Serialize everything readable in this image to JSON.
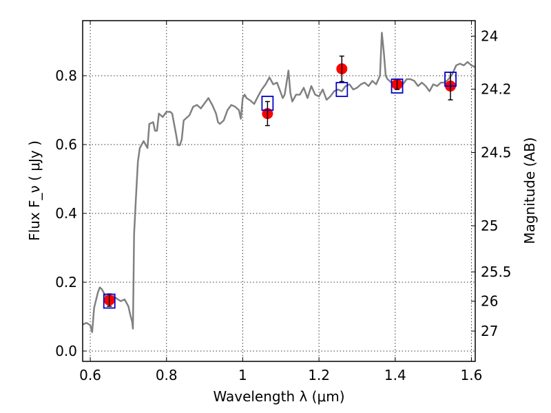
{
  "chart_data": {
    "type": "scatter",
    "xlabel": "Wavelength  λ (μm)",
    "ylabel": "Flux  F_ν  ( μJy )",
    "ylabel_right": "Magnitude (AB)",
    "xlim": [
      0.58,
      1.61
    ],
    "ylim": [
      -0.03,
      0.96
    ],
    "grid": true,
    "x_ticks": [
      0.6,
      0.8,
      1.0,
      1.2,
      1.4,
      1.6
    ],
    "x_tick_labels": [
      "0.6",
      "0.8",
      "1",
      "1.2",
      "1.4",
      "1.6"
    ],
    "y_ticks": [
      0.0,
      0.2,
      0.4,
      0.6,
      0.8
    ],
    "y_tick_labels": [
      "0.0",
      "0.2",
      "0.4",
      "0.6",
      "0.8"
    ],
    "mag_ticks": [
      {
        "label": "24",
        "flux": 0.915
      },
      {
        "label": "24.2",
        "flux": 0.761
      },
      {
        "label": "24.5",
        "flux": 0.577
      },
      {
        "label": "25",
        "flux": 0.364
      },
      {
        "label": "25.5",
        "flux": 0.23
      },
      {
        "label": "26",
        "flux": 0.145
      },
      {
        "label": "27",
        "flux": 0.058
      }
    ],
    "model_color": "#808080",
    "model_spectrum": [
      [
        0.58,
        0.077
      ],
      [
        0.59,
        0.082
      ],
      [
        0.6,
        0.075
      ],
      [
        0.605,
        0.055
      ],
      [
        0.61,
        0.125
      ],
      [
        0.62,
        0.17
      ],
      [
        0.625,
        0.185
      ],
      [
        0.63,
        0.18
      ],
      [
        0.64,
        0.16
      ],
      [
        0.65,
        0.155
      ],
      [
        0.66,
        0.16
      ],
      [
        0.67,
        0.152
      ],
      [
        0.68,
        0.145
      ],
      [
        0.69,
        0.15
      ],
      [
        0.7,
        0.13
      ],
      [
        0.705,
        0.105
      ],
      [
        0.71,
        0.085
      ],
      [
        0.712,
        0.065
      ],
      [
        0.715,
        0.34
      ],
      [
        0.72,
        0.45
      ],
      [
        0.725,
        0.55
      ],
      [
        0.73,
        0.59
      ],
      [
        0.74,
        0.61
      ],
      [
        0.75,
        0.59
      ],
      [
        0.755,
        0.66
      ],
      [
        0.765,
        0.665
      ],
      [
        0.77,
        0.64
      ],
      [
        0.775,
        0.64
      ],
      [
        0.78,
        0.69
      ],
      [
        0.79,
        0.68
      ],
      [
        0.8,
        0.695
      ],
      [
        0.81,
        0.695
      ],
      [
        0.815,
        0.69
      ],
      [
        0.82,
        0.66
      ],
      [
        0.825,
        0.63
      ],
      [
        0.83,
        0.598
      ],
      [
        0.835,
        0.598
      ],
      [
        0.84,
        0.615
      ],
      [
        0.845,
        0.67
      ],
      [
        0.85,
        0.675
      ],
      [
        0.86,
        0.685
      ],
      [
        0.87,
        0.71
      ],
      [
        0.88,
        0.715
      ],
      [
        0.89,
        0.705
      ],
      [
        0.9,
        0.72
      ],
      [
        0.91,
        0.735
      ],
      [
        0.92,
        0.715
      ],
      [
        0.93,
        0.69
      ],
      [
        0.935,
        0.665
      ],
      [
        0.94,
        0.66
      ],
      [
        0.95,
        0.67
      ],
      [
        0.96,
        0.7
      ],
      [
        0.97,
        0.715
      ],
      [
        0.98,
        0.71
      ],
      [
        0.99,
        0.7
      ],
      [
        0.995,
        0.675
      ],
      [
        1.0,
        0.735
      ],
      [
        1.005,
        0.745
      ],
      [
        1.01,
        0.735
      ],
      [
        1.02,
        0.728
      ],
      [
        1.03,
        0.718
      ],
      [
        1.04,
        0.74
      ],
      [
        1.05,
        0.76
      ],
      [
        1.06,
        0.775
      ],
      [
        1.07,
        0.795
      ],
      [
        1.08,
        0.775
      ],
      [
        1.09,
        0.78
      ],
      [
        1.1,
        0.75
      ],
      [
        1.105,
        0.735
      ],
      [
        1.11,
        0.745
      ],
      [
        1.115,
        0.78
      ],
      [
        1.12,
        0.815
      ],
      [
        1.125,
        0.75
      ],
      [
        1.13,
        0.725
      ],
      [
        1.14,
        0.745
      ],
      [
        1.15,
        0.745
      ],
      [
        1.16,
        0.765
      ],
      [
        1.17,
        0.735
      ],
      [
        1.18,
        0.77
      ],
      [
        1.19,
        0.745
      ],
      [
        1.2,
        0.74
      ],
      [
        1.21,
        0.76
      ],
      [
        1.22,
        0.73
      ],
      [
        1.23,
        0.74
      ],
      [
        1.24,
        0.755
      ],
      [
        1.25,
        0.76
      ],
      [
        1.26,
        0.755
      ],
      [
        1.27,
        0.77
      ],
      [
        1.28,
        0.775
      ],
      [
        1.29,
        0.76
      ],
      [
        1.3,
        0.765
      ],
      [
        1.31,
        0.775
      ],
      [
        1.32,
        0.78
      ],
      [
        1.33,
        0.77
      ],
      [
        1.34,
        0.785
      ],
      [
        1.35,
        0.775
      ],
      [
        1.36,
        0.8
      ],
      [
        1.365,
        0.925
      ],
      [
        1.37,
        0.87
      ],
      [
        1.375,
        0.8
      ],
      [
        1.38,
        0.79
      ],
      [
        1.39,
        0.78
      ],
      [
        1.4,
        0.77
      ],
      [
        1.41,
        0.78
      ],
      [
        1.42,
        0.775
      ],
      [
        1.43,
        0.79
      ],
      [
        1.44,
        0.79
      ],
      [
        1.45,
        0.785
      ],
      [
        1.46,
        0.77
      ],
      [
        1.47,
        0.78
      ],
      [
        1.48,
        0.77
      ],
      [
        1.49,
        0.755
      ],
      [
        1.5,
        0.775
      ],
      [
        1.51,
        0.77
      ],
      [
        1.52,
        0.78
      ],
      [
        1.53,
        0.78
      ],
      [
        1.54,
        0.79
      ],
      [
        1.55,
        0.805
      ],
      [
        1.56,
        0.83
      ],
      [
        1.57,
        0.835
      ],
      [
        1.58,
        0.83
      ],
      [
        1.59,
        0.84
      ],
      [
        1.6,
        0.83
      ],
      [
        1.61,
        0.825
      ]
    ],
    "model_points": {
      "color": "#0000cc",
      "x": [
        0.65,
        1.065,
        1.26,
        1.405,
        1.545
      ],
      "y": [
        0.145,
        0.72,
        0.76,
        0.77,
        0.79
      ]
    },
    "observed_points": {
      "color": "#ff0000",
      "x": [
        0.65,
        1.065,
        1.26,
        1.405,
        1.545
      ],
      "y": [
        0.148,
        0.69,
        0.82,
        0.775,
        0.77
      ],
      "yerr": [
        0.018,
        0.035,
        0.037,
        0.015,
        0.04
      ]
    }
  }
}
